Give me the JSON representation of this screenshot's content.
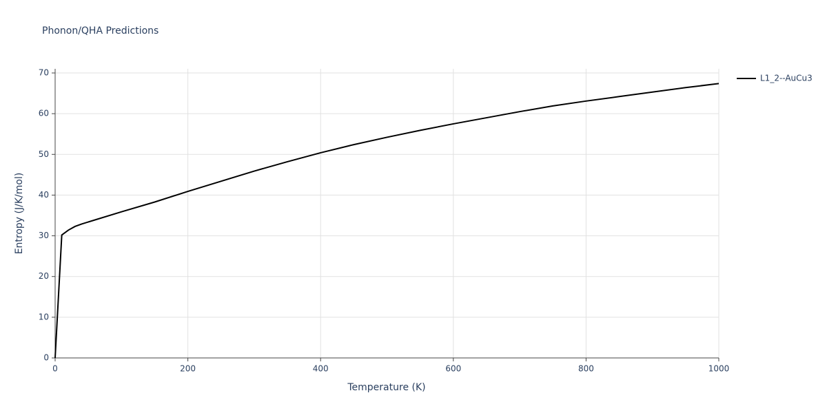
{
  "chart_data": {
    "type": "line",
    "title": "Phonon/QHA Predictions",
    "x_label": "Temperature (K)",
    "y_label": "Entropy (J/K/mol)",
    "x": [
      0,
      10,
      20,
      30,
      40,
      60,
      100,
      150,
      200,
      250,
      300,
      350,
      400,
      450,
      500,
      550,
      600,
      650,
      700,
      750,
      800,
      850,
      900,
      950,
      1000
    ],
    "series": [
      {
        "name": "L1_2--AuCu3",
        "color": "#000000",
        "values": [
          0,
          30.2,
          31.4,
          32.3,
          32.9,
          33.9,
          35.9,
          38.3,
          40.9,
          43.4,
          45.9,
          48.2,
          50.4,
          52.4,
          54.2,
          55.9,
          57.5,
          59.0,
          60.5,
          61.9,
          63.1,
          64.2,
          65.3,
          66.4,
          67.4
        ]
      }
    ],
    "xlim": [
      0,
      1000
    ],
    "xticks": [
      0,
      200,
      400,
      600,
      800,
      1000
    ],
    "ylim": [
      0,
      70
    ],
    "yticks": [
      0,
      10,
      20,
      30,
      40,
      50,
      60,
      70
    ],
    "grid": true,
    "legend": "right"
  }
}
